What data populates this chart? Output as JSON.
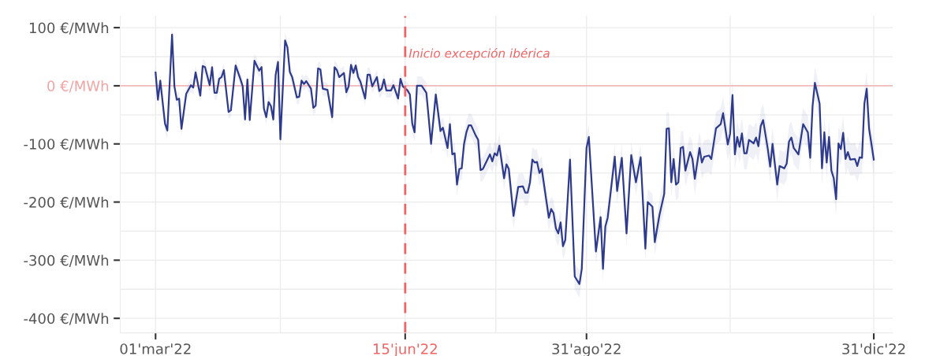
{
  "chart_data": {
    "type": "line",
    "xlim": [
      "2022-02-14",
      "2023-01-08"
    ],
    "xticks": [
      {
        "value": "2022-03-01",
        "label": "01'mar'22"
      },
      {
        "value": "2022-06-15",
        "label": "15'jun'22"
      },
      {
        "value": "2022-08-31",
        "label": "31'ago'22"
      },
      {
        "value": "2022-12-31",
        "label": "31'dic'22"
      }
    ],
    "ylim": [
      -425,
      120
    ],
    "yticks": [
      {
        "value": 100,
        "label": "100 €/MWh"
      },
      {
        "value": 0,
        "label": "0 €/MWh"
      },
      {
        "value": -100,
        "label": "-100 €/MWh"
      },
      {
        "value": -200,
        "label": "-200 €/MWh"
      },
      {
        "value": -300,
        "label": "-300 €/MWh"
      },
      {
        "value": -400,
        "label": "-400 €/MWh"
      }
    ],
    "grid": true,
    "marker": "none",
    "line_style": "solid",
    "ref_lines": [
      {
        "axis": "y",
        "value": 0,
        "color": "#f4a3a3",
        "line_style": "solid"
      },
      {
        "axis": "x",
        "value": "2022-06-15",
        "label": "Inicio excepción ibérica",
        "color": "#f26464",
        "line_style": "dashed"
      }
    ],
    "series": [
      {
        "color": "#2e3a8c",
        "x": [
          "2022-03-01",
          "2022-03-02",
          "2022-03-03",
          "2022-03-05",
          "2022-03-06",
          "2022-03-08",
          "2022-03-09",
          "2022-03-10",
          "2022-03-11",
          "2022-03-12",
          "2022-03-14",
          "2022-03-16",
          "2022-03-17",
          "2022-03-18",
          "2022-03-20",
          "2022-03-21",
          "2022-03-22",
          "2022-03-24",
          "2022-03-25",
          "2022-03-26",
          "2022-03-27",
          "2022-03-28",
          "2022-03-29",
          "2022-03-30",
          "2022-04-01",
          "2022-04-02",
          "2022-04-04",
          "2022-04-06",
          "2022-04-07",
          "2022-04-08",
          "2022-04-09",
          "2022-04-10",
          "2022-04-12",
          "2022-04-14",
          "2022-04-15",
          "2022-04-16",
          "2022-04-17",
          "2022-04-18",
          "2022-04-19",
          "2022-04-20",
          "2022-04-21",
          "2022-04-22",
          "2022-04-23",
          "2022-04-25",
          "2022-04-26",
          "2022-04-27",
          "2022-04-28",
          "2022-04-30",
          "2022-05-01",
          "2022-05-02",
          "2022-05-03",
          "2022-05-04",
          "2022-05-06",
          "2022-05-07",
          "2022-05-08",
          "2022-05-09",
          "2022-05-10",
          "2022-05-11",
          "2022-05-13",
          "2022-05-15",
          "2022-05-16",
          "2022-05-17",
          "2022-05-18",
          "2022-05-20",
          "2022-05-21",
          "2022-05-22",
          "2022-05-23",
          "2022-05-24",
          "2022-05-25",
          "2022-05-26",
          "2022-05-27",
          "2022-05-29",
          "2022-05-30",
          "2022-05-31",
          "2022-06-01",
          "2022-06-03",
          "2022-06-04",
          "2022-06-05",
          "2022-06-06",
          "2022-06-07",
          "2022-06-09",
          "2022-06-10",
          "2022-06-12",
          "2022-06-13",
          "2022-06-14",
          "2022-06-16",
          "2022-06-17",
          "2022-06-18",
          "2022-06-19",
          "2022-06-20",
          "2022-06-22",
          "2022-06-24",
          "2022-06-26",
          "2022-06-28",
          "2022-06-30",
          "2022-07-01",
          "2022-07-03",
          "2022-07-04",
          "2022-07-05",
          "2022-07-06",
          "2022-07-07",
          "2022-07-08",
          "2022-07-09",
          "2022-07-10",
          "2022-07-11",
          "2022-07-12",
          "2022-07-13",
          "2022-07-15",
          "2022-07-16",
          "2022-07-17",
          "2022-07-18",
          "2022-07-21",
          "2022-07-22",
          "2022-07-23",
          "2022-07-24",
          "2022-07-25",
          "2022-07-27",
          "2022-07-28",
          "2022-07-29",
          "2022-07-31",
          "2022-08-02",
          "2022-08-04",
          "2022-08-05",
          "2022-08-06",
          "2022-08-07",
          "2022-08-08",
          "2022-08-09",
          "2022-08-10",
          "2022-08-11",
          "2022-08-12",
          "2022-08-15",
          "2022-08-16",
          "2022-08-17",
          "2022-08-18",
          "2022-08-19",
          "2022-08-20",
          "2022-08-21",
          "2022-08-22",
          "2022-08-24",
          "2022-08-26",
          "2022-08-28",
          "2022-08-29",
          "2022-08-31",
          "2022-09-01",
          "2022-09-04",
          "2022-09-06",
          "2022-09-07",
          "2022-09-08",
          "2022-09-09",
          "2022-09-12",
          "2022-09-13",
          "2022-09-15",
          "2022-09-17",
          "2022-09-19",
          "2022-09-21",
          "2022-09-23",
          "2022-09-25",
          "2022-09-26",
          "2022-09-28",
          "2022-09-29",
          "2022-10-01",
          "2022-10-03",
          "2022-10-04",
          "2022-10-05",
          "2022-10-06",
          "2022-10-07",
          "2022-10-08",
          "2022-10-09",
          "2022-10-10",
          "2022-10-11",
          "2022-10-12",
          "2022-10-14",
          "2022-10-15",
          "2022-10-16",
          "2022-10-18",
          "2022-10-19",
          "2022-10-20",
          "2022-10-22",
          "2022-10-23",
          "2022-10-25",
          "2022-10-27",
          "2022-10-28",
          "2022-10-30",
          "2022-10-31",
          "2022-11-01",
          "2022-11-02",
          "2022-11-03",
          "2022-11-04",
          "2022-11-05",
          "2022-11-06",
          "2022-11-07",
          "2022-11-08",
          "2022-11-10",
          "2022-11-11",
          "2022-11-12",
          "2022-11-13",
          "2022-11-14",
          "2022-11-16",
          "2022-11-17",
          "2022-11-18",
          "2022-11-20",
          "2022-11-21",
          "2022-11-23",
          "2022-11-24",
          "2022-11-25",
          "2022-11-26",
          "2022-11-27",
          "2022-11-29",
          "2022-12-01",
          "2022-12-03",
          "2022-12-04",
          "2022-12-05",
          "2022-12-06",
          "2022-12-08",
          "2022-12-09",
          "2022-12-10",
          "2022-12-11",
          "2022-12-12",
          "2022-12-13",
          "2022-12-14",
          "2022-12-15",
          "2022-12-16",
          "2022-12-17",
          "2022-12-18",
          "2022-12-19",
          "2022-12-20",
          "2022-12-21",
          "2022-12-23",
          "2022-12-24",
          "2022-12-25",
          "2022-12-26",
          "2022-12-27",
          "2022-12-28",
          "2022-12-29",
          "2022-12-30",
          "2022-12-31"
        ],
        "values": [
          23,
          -24,
          9,
          -65,
          -77,
          88,
          -1,
          -24,
          -22,
          -74,
          -14,
          1,
          -3,
          23,
          -17,
          34,
          32,
          1,
          32,
          -12,
          -12,
          12,
          15,
          27,
          -45,
          -42,
          35,
          12,
          -1,
          -58,
          11,
          -59,
          43,
          26,
          32,
          -39,
          -54,
          -28,
          -35,
          -58,
          19,
          41,
          -92,
          78,
          66,
          24,
          15,
          -20,
          -19,
          9,
          3,
          8,
          -5,
          -38,
          -34,
          30,
          28,
          -5,
          -7,
          -54,
          32,
          27,
          15,
          22,
          -11,
          -1,
          36,
          22,
          35,
          15,
          7,
          -22,
          19,
          19,
          -1,
          15,
          -9,
          -5,
          11,
          -8,
          -8,
          1,
          -22,
          12,
          -1,
          -8,
          -15,
          -65,
          -80,
          0,
          0,
          -12,
          -100,
          -15,
          -78,
          -72,
          -107,
          -66,
          -118,
          -116,
          -170,
          -143,
          -142,
          -100,
          -80,
          -68,
          -68,
          -86,
          -93,
          -145,
          -143,
          -118,
          -130,
          -116,
          -120,
          -103,
          -159,
          -135,
          -143,
          -224,
          -174,
          -173,
          -184,
          -184,
          -166,
          -127,
          -132,
          -131,
          -150,
          -143,
          -227,
          -212,
          -219,
          -245,
          -254,
          -235,
          -276,
          -265,
          -127,
          -328,
          -341,
          -315,
          -107,
          -88,
          -285,
          -226,
          -315,
          -242,
          -227,
          -122,
          -181,
          -124,
          -254,
          -119,
          -166,
          -123,
          -280,
          -200,
          -208,
          -269,
          -222,
          -186,
          -74,
          -73,
          -166,
          -126,
          -170,
          -166,
          -107,
          -105,
          -146,
          -114,
          -126,
          -160,
          -107,
          -132,
          -122,
          -120,
          -126,
          -73,
          -66,
          -47,
          -101,
          -82,
          -16,
          -118,
          -88,
          -105,
          -82,
          -116,
          -116,
          -93,
          -99,
          -89,
          -104,
          -69,
          -59,
          -109,
          -139,
          -100,
          -170,
          -138,
          -142,
          -134,
          -96,
          -89,
          -107,
          -118,
          -66,
          -80,
          -124,
          -35,
          5,
          -31,
          -142,
          -80,
          -132,
          -88,
          -146,
          -159,
          -195,
          -99,
          -109,
          -81,
          -126,
          -114,
          -127,
          -126,
          -138,
          -123,
          -124,
          -31,
          -5,
          -74,
          -100,
          -127
        ],
        "lower": [
          10,
          -36,
          -3,
          -78,
          -92,
          74,
          -13,
          -36,
          -34,
          -88,
          -26,
          -11,
          -15,
          11,
          -29,
          22,
          20,
          -11,
          20,
          -24,
          -24,
          0,
          3,
          15,
          -57,
          -54,
          23,
          0,
          -13,
          -70,
          -1,
          -71,
          31,
          14,
          20,
          -51,
          -66,
          -40,
          -47,
          -70,
          7,
          29,
          -106,
          64,
          54,
          12,
          3,
          -32,
          -31,
          -3,
          -9,
          -4,
          -17,
          -50,
          -46,
          18,
          16,
          -17,
          -19,
          -66,
          20,
          15,
          3,
          10,
          -23,
          -13,
          24,
          10,
          23,
          3,
          -5,
          -34,
          7,
          7,
          -13,
          3,
          -21,
          -17,
          -1,
          -20,
          -20,
          -11,
          -34,
          0,
          -13,
          -22,
          -30,
          -82,
          -96,
          -16,
          -16,
          -30,
          -118,
          -33,
          -96,
          -90,
          -125,
          -84,
          -136,
          -134,
          -190,
          -163,
          -162,
          -120,
          -100,
          -88,
          -88,
          -106,
          -113,
          -165,
          -163,
          -138,
          -150,
          -136,
          -140,
          -123,
          -179,
          -155,
          -163,
          -246,
          -196,
          -195,
          -206,
          -206,
          -188,
          -149,
          -154,
          -153,
          -172,
          -165,
          -249,
          -234,
          -241,
          -267,
          -276,
          -257,
          -298,
          -287,
          -149,
          -350,
          -365,
          -339,
          -129,
          -110,
          -307,
          -248,
          -337,
          -264,
          -249,
          -144,
          -203,
          -146,
          -276,
          -141,
          -188,
          -145,
          -302,
          -222,
          -230,
          -291,
          -250,
          -214,
          -102,
          -101,
          -194,
          -154,
          -198,
          -194,
          -135,
          -133,
          -174,
          -142,
          -154,
          -188,
          -135,
          -160,
          -150,
          -148,
          -154,
          -101,
          -94,
          -75,
          -129,
          -110,
          -44,
          -146,
          -116,
          -133,
          -110,
          -144,
          -144,
          -121,
          -127,
          -117,
          -132,
          -97,
          -87,
          -137,
          -167,
          -128,
          -198,
          -166,
          -170,
          -162,
          -124,
          -117,
          -135,
          -146,
          -94,
          -108,
          -152,
          -63,
          -23,
          -59,
          -170,
          -108,
          -160,
          -116,
          -174,
          -187,
          -223,
          -127,
          -137,
          -109,
          -154,
          -142,
          -155,
          -154,
          -166,
          -151,
          -152,
          -59,
          -33,
          -102,
          -128,
          -155
        ],
        "upper": [
          36,
          -12,
          21,
          -52,
          -62,
          102,
          11,
          -12,
          -10,
          -60,
          -2,
          13,
          9,
          35,
          -5,
          46,
          44,
          13,
          44,
          0,
          0,
          24,
          27,
          39,
          -33,
          -30,
          47,
          24,
          11,
          -46,
          23,
          -47,
          55,
          38,
          44,
          -27,
          -42,
          -16,
          -23,
          -46,
          31,
          53,
          -78,
          92,
          78,
          36,
          27,
          -8,
          -7,
          21,
          15,
          20,
          7,
          -26,
          -22,
          42,
          40,
          7,
          5,
          -42,
          44,
          39,
          27,
          34,
          1,
          11,
          48,
          34,
          47,
          27,
          19,
          -10,
          31,
          31,
          11,
          27,
          3,
          7,
          23,
          4,
          4,
          13,
          -10,
          24,
          11,
          6,
          0,
          -48,
          -64,
          16,
          16,
          6,
          -82,
          3,
          -60,
          -54,
          -89,
          -48,
          -100,
          -98,
          -150,
          -123,
          -122,
          -80,
          -60,
          -48,
          -48,
          -66,
          -73,
          -125,
          -123,
          -98,
          -110,
          -96,
          -100,
          -83,
          -139,
          -115,
          -123,
          -202,
          -152,
          -151,
          -162,
          -162,
          -144,
          -105,
          -110,
          -109,
          -128,
          -121,
          -205,
          -190,
          -197,
          -223,
          -232,
          -213,
          -254,
          -243,
          -105,
          -306,
          -317,
          -291,
          -85,
          -66,
          -263,
          -204,
          -293,
          -220,
          -205,
          -100,
          -159,
          -102,
          -232,
          -97,
          -144,
          -101,
          -258,
          -178,
          -186,
          -247,
          -194,
          -158,
          -46,
          -45,
          -138,
          -98,
          -142,
          -138,
          -79,
          -77,
          -118,
          -86,
          -98,
          -132,
          -79,
          -104,
          -94,
          -92,
          -98,
          -45,
          -38,
          -19,
          -73,
          -54,
          12,
          -90,
          -60,
          -77,
          -54,
          -88,
          -88,
          -65,
          -71,
          -61,
          -76,
          -41,
          -31,
          -81,
          -111,
          -72,
          -142,
          -110,
          -114,
          -106,
          -68,
          -61,
          -79,
          -90,
          -38,
          -52,
          -96,
          -7,
          33,
          -3,
          -114,
          -52,
          -104,
          -60,
          -118,
          -131,
          -167,
          -71,
          -81,
          -53,
          -98,
          -86,
          -99,
          -98,
          -110,
          -95,
          -96,
          -3,
          23,
          -46,
          -72,
          -99
        ]
      }
    ]
  }
}
